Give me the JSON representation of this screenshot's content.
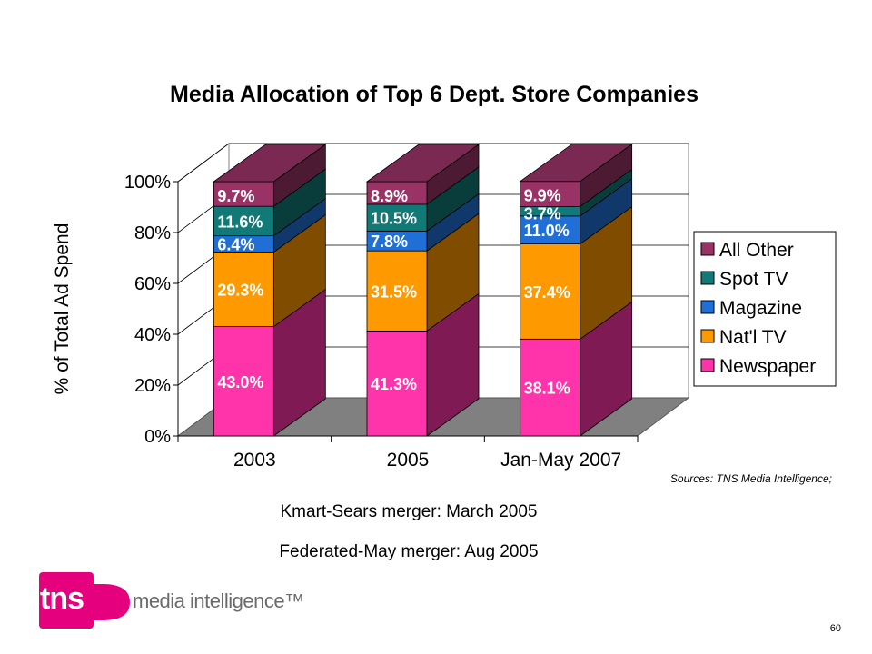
{
  "chart_data": {
    "type": "bar",
    "stacked": true,
    "three_d": true,
    "title": "Media Allocation of Top 6 Dept. Store Companies",
    "ylabel": "% of Total Ad Spend",
    "xlabel": "",
    "ylim": [
      0,
      100
    ],
    "yticks": [
      "0%",
      "20%",
      "40%",
      "60%",
      "80%",
      "100%"
    ],
    "categories": [
      "2003",
      "2005",
      "Jan-May 2007"
    ],
    "legend_position": "right",
    "series": [
      {
        "name": "Newspaper",
        "values": [
          43.0,
          41.3,
          38.1
        ],
        "labels": [
          "43.0%",
          "41.3%",
          "38.1%"
        ],
        "color": "#ff33aa",
        "label_color": "#ffffff"
      },
      {
        "name": "Nat'l TV",
        "values": [
          29.3,
          31.5,
          37.4
        ],
        "labels": [
          "29.3%",
          "31.5%",
          "37.4%"
        ],
        "color": "#ff9900",
        "label_color": "#ffffff"
      },
      {
        "name": "Magazine",
        "values": [
          6.4,
          7.8,
          11.0
        ],
        "labels": [
          "6.4%",
          "7.8%",
          "11.0%"
        ],
        "color": "#1f6fd6",
        "label_color": "#ffffff"
      },
      {
        "name": "Spot TV",
        "values": [
          11.6,
          10.5,
          3.7
        ],
        "labels": [
          "11.6%",
          "10.5%",
          "3.7%"
        ],
        "color": "#117a76",
        "label_color": "#ffffff"
      },
      {
        "name": "All Other",
        "values": [
          9.7,
          8.9,
          9.9
        ],
        "labels": [
          "9.7%",
          "8.9%",
          "9.9%"
        ],
        "color": "#993366",
        "label_color": "#ffffff"
      }
    ]
  },
  "notes": {
    "source": "Sources: TNS Media Intelligence;",
    "line1": "Kmart-Sears merger: March 2005",
    "line2": "Federated-May merger: Aug 2005"
  },
  "logo": {
    "mark": "tns",
    "tagline": "media intelligence™",
    "brand_color": "#e5007e"
  },
  "page_number": "60"
}
